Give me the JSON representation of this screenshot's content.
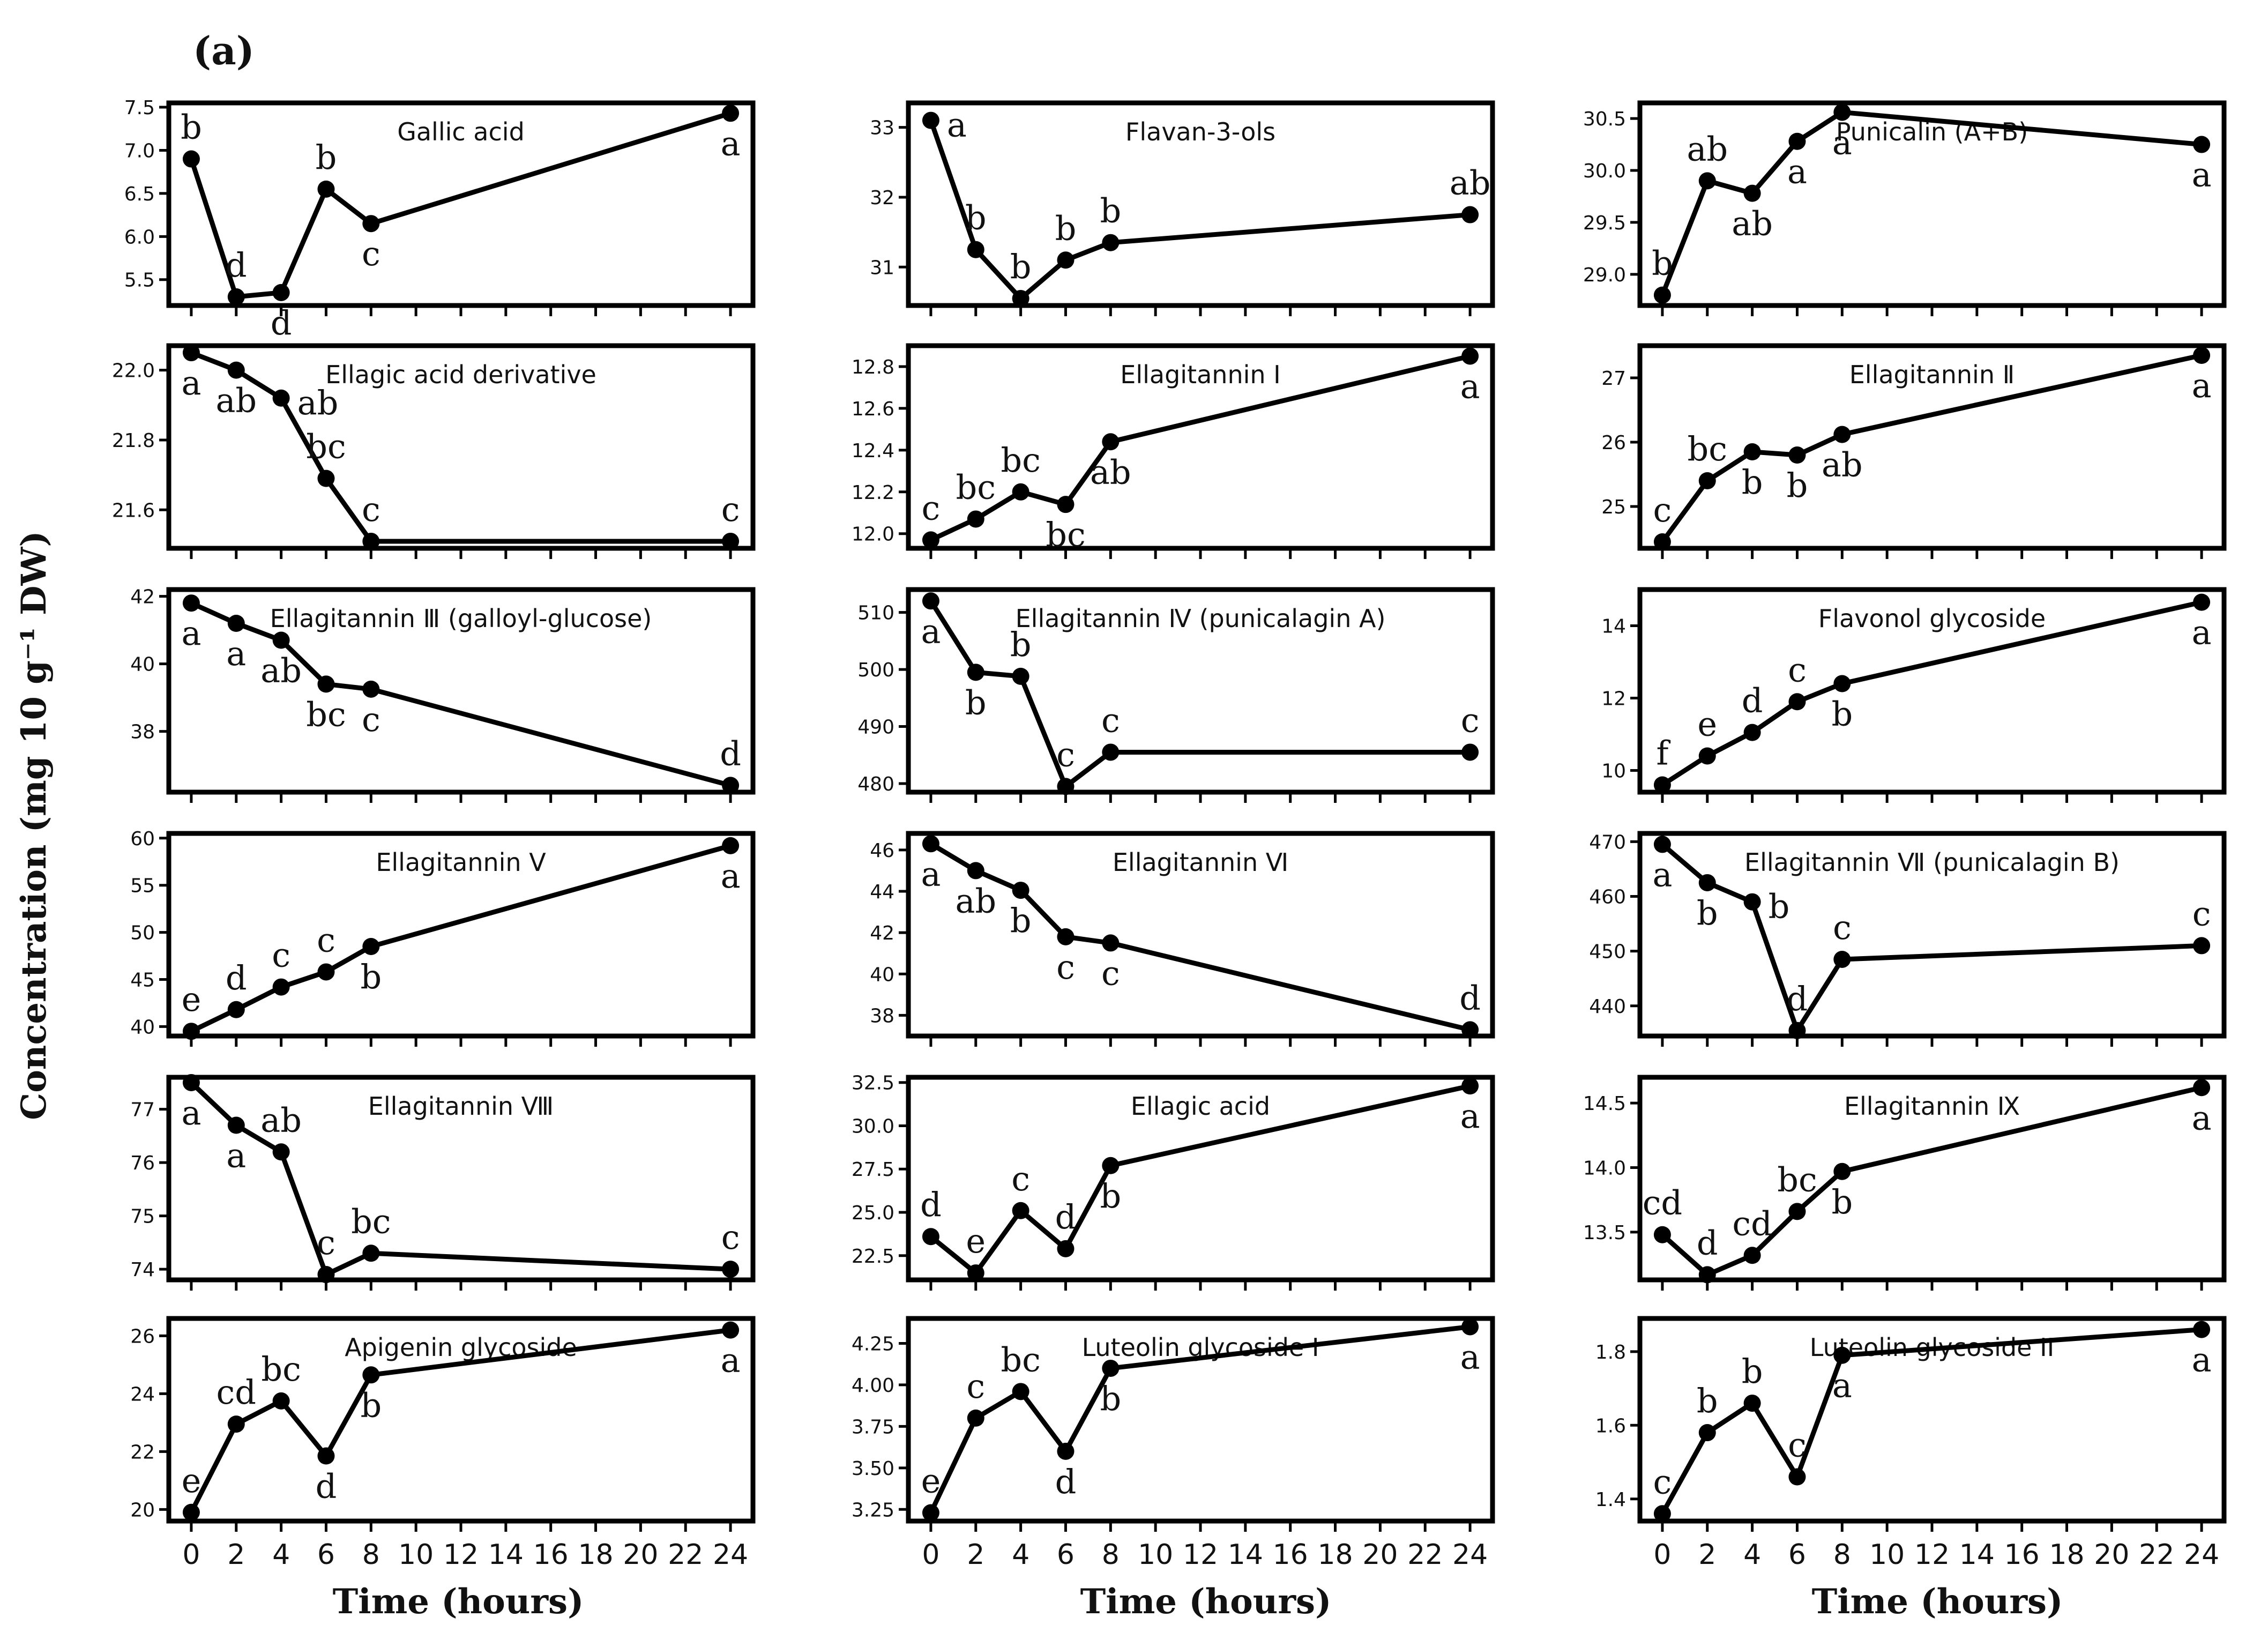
{
  "figure_label": "(a)",
  "x_axis_title": "Time (hours)",
  "y_axis_title": "Concentration (mg 10 g⁻¹ DW)",
  "x_ticks": [
    "0",
    "2",
    "4",
    "6",
    "8",
    "10",
    "12",
    "14",
    "16",
    "18",
    "20",
    "22",
    "24"
  ],
  "colors": {
    "line": "#000000",
    "marker": "#000000",
    "frame": "#000000"
  },
  "chart_data": [
    {
      "type": "line",
      "title": "Gallic acid",
      "x": [
        0,
        2,
        4,
        6,
        8,
        24
      ],
      "values": [
        6.9,
        5.3,
        5.35,
        6.55,
        6.15,
        7.43
      ],
      "labels": [
        "b",
        "d",
        "d",
        "b",
        "c",
        "a"
      ],
      "label_pos": [
        "above",
        "above",
        "below",
        "above",
        "below",
        "below"
      ],
      "yticks": [
        5.5,
        6.0,
        6.5,
        7.0,
        7.5
      ],
      "ytick_labels": [
        "5.5",
        "6.0",
        "6.5",
        "7.0",
        "7.5"
      ],
      "ylim": [
        5.2,
        7.55
      ],
      "xlim": [
        -1,
        25
      ]
    },
    {
      "type": "line",
      "title": "Flavan-3-ols",
      "x": [
        0,
        2,
        4,
        6,
        8,
        24
      ],
      "values": [
        33.1,
        31.25,
        30.55,
        31.1,
        31.35,
        31.75
      ],
      "labels": [
        "a",
        "b",
        "b",
        "b",
        "b",
        "ab"
      ],
      "label_pos": [
        "right",
        "above",
        "above",
        "above",
        "above",
        "above"
      ],
      "yticks": [
        31,
        32,
        33
      ],
      "ytick_labels": [
        "31",
        "32",
        "33"
      ],
      "ylim": [
        30.45,
        33.35
      ],
      "xlim": [
        -1,
        25
      ]
    },
    {
      "type": "line",
      "title": "Punicalin (A+B)",
      "x": [
        0,
        2,
        4,
        6,
        8,
        24
      ],
      "values": [
        28.8,
        29.9,
        29.78,
        30.28,
        30.56,
        30.25
      ],
      "labels": [
        "b",
        "ab",
        "ab",
        "a",
        "a",
        "a"
      ],
      "label_pos": [
        "above",
        "above",
        "below",
        "below",
        "below",
        "below"
      ],
      "yticks": [
        29.0,
        29.5,
        30.0,
        30.5
      ],
      "ytick_labels": [
        "29.0",
        "29.5",
        "30.0",
        "30.5"
      ],
      "ylim": [
        28.7,
        30.65
      ],
      "xlim": [
        -1,
        25
      ]
    },
    {
      "type": "line",
      "title": "Ellagic acid derivative",
      "x": [
        0,
        2,
        4,
        6,
        8,
        24
      ],
      "values": [
        22.05,
        22.0,
        21.92,
        21.69,
        21.51,
        21.51
      ],
      "labels": [
        "a",
        "ab",
        "ab",
        "bc",
        "c",
        "c"
      ],
      "label_pos": [
        "below",
        "below",
        "right",
        "above",
        "above",
        "above"
      ],
      "yticks": [
        21.6,
        21.8,
        22.0
      ],
      "ytick_labels": [
        "21.6",
        "21.8",
        "22.0"
      ],
      "ylim": [
        21.49,
        22.07
      ],
      "xlim": [
        -1,
        25
      ]
    },
    {
      "type": "line",
      "title": "Ellagitannin Ⅰ",
      "x": [
        0,
        2,
        4,
        6,
        8,
        24
      ],
      "values": [
        11.97,
        12.07,
        12.2,
        12.14,
        12.44,
        12.85
      ],
      "labels": [
        "c",
        "bc",
        "bc",
        "bc",
        "ab",
        "a"
      ],
      "label_pos": [
        "above",
        "above",
        "above",
        "below",
        "below",
        "below"
      ],
      "yticks": [
        12.0,
        12.2,
        12.4,
        12.6,
        12.8
      ],
      "ytick_labels": [
        "12.0",
        "12.2",
        "12.4",
        "12.6",
        "12.8"
      ],
      "ylim": [
        11.93,
        12.9
      ],
      "xlim": [
        -1,
        25
      ]
    },
    {
      "type": "line",
      "title": "Ellagitannin Ⅱ",
      "x": [
        0,
        2,
        4,
        6,
        8,
        24
      ],
      "values": [
        24.45,
        25.4,
        25.85,
        25.8,
        26.12,
        27.35
      ],
      "labels": [
        "c",
        "bc",
        "b",
        "b",
        "ab",
        "a"
      ],
      "label_pos": [
        "above",
        "above",
        "below",
        "below",
        "below",
        "below"
      ],
      "yticks": [
        25,
        26,
        27
      ],
      "ytick_labels": [
        "25",
        "26",
        "27"
      ],
      "ylim": [
        24.35,
        27.5
      ],
      "xlim": [
        -1,
        25
      ]
    },
    {
      "type": "line",
      "title": "Ellagitannin Ⅲ (galloyl-glucose)",
      "x": [
        0,
        2,
        4,
        6,
        8,
        24
      ],
      "values": [
        41.8,
        41.2,
        40.7,
        39.4,
        39.25,
        36.4
      ],
      "labels": [
        "a",
        "a",
        "ab",
        "bc",
        "c",
        "d"
      ],
      "label_pos": [
        "below",
        "below",
        "below",
        "below",
        "below",
        "above"
      ],
      "yticks": [
        38,
        40,
        42
      ],
      "ytick_labels": [
        "38",
        "40",
        "42"
      ],
      "ylim": [
        36.2,
        42.2
      ],
      "xlim": [
        -1,
        25
      ]
    },
    {
      "type": "line",
      "title": "Ellagitannin Ⅳ (punicalagin A)",
      "x": [
        0,
        2,
        4,
        6,
        8,
        24
      ],
      "values": [
        512,
        499.5,
        498.8,
        479.5,
        485.5,
        485.5
      ],
      "labels": [
        "a",
        "b",
        "b",
        "c",
        "c",
        "c"
      ],
      "label_pos": [
        "below",
        "below",
        "above",
        "above",
        "above",
        "above"
      ],
      "yticks": [
        480,
        490,
        500,
        510
      ],
      "ytick_labels": [
        "480",
        "490",
        "500",
        "510"
      ],
      "ylim": [
        478.5,
        514
      ],
      "xlim": [
        -1,
        25
      ]
    },
    {
      "type": "line",
      "title": "Flavonol glycoside",
      "x": [
        0,
        2,
        4,
        6,
        8,
        24
      ],
      "values": [
        9.6,
        10.4,
        11.05,
        11.9,
        12.4,
        14.65
      ],
      "labels": [
        "f",
        "e",
        "d",
        "c",
        "b",
        "a"
      ],
      "label_pos": [
        "above",
        "above",
        "above",
        "above",
        "below",
        "below"
      ],
      "yticks": [
        10,
        12,
        14
      ],
      "ytick_labels": [
        "10",
        "12",
        "14"
      ],
      "ylim": [
        9.4,
        15.0
      ],
      "xlim": [
        -1,
        25
      ]
    },
    {
      "type": "line",
      "title": "Ellagitannin V",
      "x": [
        0,
        2,
        4,
        6,
        8,
        24
      ],
      "values": [
        39.5,
        41.8,
        44.2,
        45.8,
        48.5,
        59.2
      ],
      "labels": [
        "e",
        "d",
        "c",
        "c",
        "b",
        "a"
      ],
      "label_pos": [
        "above",
        "above",
        "above",
        "above",
        "below",
        "below"
      ],
      "yticks": [
        40,
        45,
        50,
        55,
        60
      ],
      "ytick_labels": [
        "40",
        "45",
        "50",
        "55",
        "60"
      ],
      "ylim": [
        39.0,
        60.5
      ],
      "xlim": [
        -1,
        25
      ]
    },
    {
      "type": "line",
      "title": "Ellagitannin Ⅵ",
      "x": [
        0,
        2,
        4,
        6,
        8,
        24
      ],
      "values": [
        46.3,
        45.0,
        44.05,
        41.8,
        41.5,
        37.3
      ],
      "labels": [
        "a",
        "ab",
        "b",
        "c",
        "c",
        "d"
      ],
      "label_pos": [
        "below",
        "below",
        "below",
        "below",
        "below",
        "above"
      ],
      "yticks": [
        38,
        40,
        42,
        44,
        46
      ],
      "ytick_labels": [
        "38",
        "40",
        "42",
        "44",
        "46"
      ],
      "ylim": [
        37.0,
        46.8
      ],
      "xlim": [
        -1,
        25
      ]
    },
    {
      "type": "line",
      "title": "Ellagitannin Ⅶ (punicalagin B)",
      "x": [
        0,
        2,
        4,
        6,
        8,
        24
      ],
      "values": [
        469.5,
        462.5,
        459.0,
        435.5,
        448.5,
        451.0
      ],
      "labels": [
        "a",
        "b",
        "b",
        "d",
        "c",
        "c"
      ],
      "label_pos": [
        "below",
        "below",
        "right",
        "above",
        "above",
        "above"
      ],
      "yticks": [
        440,
        450,
        460,
        470
      ],
      "ytick_labels": [
        "440",
        "450",
        "460",
        "470"
      ],
      "ylim": [
        434.5,
        471.5
      ],
      "xlim": [
        -1,
        25
      ]
    },
    {
      "type": "line",
      "title": "Ellagitannin Ⅷ",
      "x": [
        0,
        2,
        4,
        6,
        8,
        24
      ],
      "values": [
        77.5,
        76.7,
        76.2,
        73.9,
        74.3,
        74.0
      ],
      "labels": [
        "a",
        "a",
        "ab",
        "c",
        "bc",
        "c"
      ],
      "label_pos": [
        "below",
        "below",
        "above",
        "above",
        "above",
        "above"
      ],
      "yticks": [
        74,
        75,
        76,
        77
      ],
      "ytick_labels": [
        "74",
        "75",
        "76",
        "77"
      ],
      "ylim": [
        73.8,
        77.6
      ],
      "xlim": [
        -1,
        25
      ]
    },
    {
      "type": "line",
      "title": "Ellagic acid",
      "x": [
        0,
        2,
        4,
        6,
        8,
        24
      ],
      "values": [
        23.6,
        21.5,
        25.1,
        22.9,
        27.7,
        32.3
      ],
      "labels": [
        "d",
        "e",
        "c",
        "d",
        "b",
        "a"
      ],
      "label_pos": [
        "above",
        "above",
        "above",
        "above",
        "below",
        "below"
      ],
      "yticks": [
        22.5,
        25.0,
        27.5,
        30.0,
        32.5
      ],
      "ytick_labels": [
        "22.5",
        "25.0",
        "27.5",
        "30.0",
        "32.5"
      ],
      "ylim": [
        21.1,
        32.8
      ],
      "xlim": [
        -1,
        25
      ]
    },
    {
      "type": "line",
      "title": "Ellagitannin Ⅸ",
      "x": [
        0,
        2,
        4,
        6,
        8,
        24
      ],
      "values": [
        13.48,
        13.17,
        13.32,
        13.66,
        13.97,
        14.62
      ],
      "labels": [
        "cd",
        "d",
        "cd",
        "bc",
        "b",
        "a"
      ],
      "label_pos": [
        "above",
        "above",
        "above",
        "above",
        "below",
        "below"
      ],
      "yticks": [
        13.5,
        14.0,
        14.5
      ],
      "ytick_labels": [
        "13.5",
        "14.0",
        "14.5"
      ],
      "ylim": [
        13.13,
        14.7
      ],
      "xlim": [
        -1,
        25
      ]
    },
    {
      "type": "line",
      "title": "Apigenin glycoside",
      "x": [
        0,
        2,
        4,
        6,
        8,
        24
      ],
      "values": [
        19.9,
        22.95,
        23.75,
        21.85,
        24.65,
        26.2
      ],
      "labels": [
        "e",
        "cd",
        "bc",
        "d",
        "b",
        "a"
      ],
      "label_pos": [
        "above",
        "above",
        "above",
        "below",
        "below",
        "below"
      ],
      "yticks": [
        20,
        22,
        24,
        26
      ],
      "ytick_labels": [
        "20",
        "22",
        "24",
        "26"
      ],
      "ylim": [
        19.6,
        26.6
      ],
      "xlim": [
        -1,
        25
      ]
    },
    {
      "type": "line",
      "title": "Luteolin glycoside I",
      "x": [
        0,
        2,
        4,
        6,
        8,
        24
      ],
      "values": [
        3.23,
        3.8,
        3.96,
        3.6,
        4.1,
        4.35
      ],
      "labels": [
        "e",
        "c",
        "bc",
        "d",
        "b",
        "a"
      ],
      "label_pos": [
        "above",
        "above",
        "above",
        "below",
        "below",
        "below"
      ],
      "yticks": [
        3.25,
        3.5,
        3.75,
        4.0,
        4.25
      ],
      "ytick_labels": [
        "3.25",
        "3.50",
        "3.75",
        "4.00",
        "4.25"
      ],
      "ylim": [
        3.18,
        4.4
      ],
      "xlim": [
        -1,
        25
      ]
    },
    {
      "type": "line",
      "title": "Luteolin glycoside II",
      "x": [
        0,
        2,
        4,
        6,
        8,
        24
      ],
      "values": [
        1.36,
        1.58,
        1.66,
        1.46,
        1.79,
        1.86
      ],
      "labels": [
        "c",
        "b",
        "b",
        "c",
        "a",
        "a"
      ],
      "label_pos": [
        "above",
        "above",
        "above",
        "above",
        "below",
        "below"
      ],
      "yticks": [
        1.4,
        1.6,
        1.8
      ],
      "ytick_labels": [
        "1.4",
        "1.6",
        "1.8"
      ],
      "ylim": [
        1.34,
        1.89
      ],
      "xlim": [
        -1,
        25
      ]
    }
  ]
}
